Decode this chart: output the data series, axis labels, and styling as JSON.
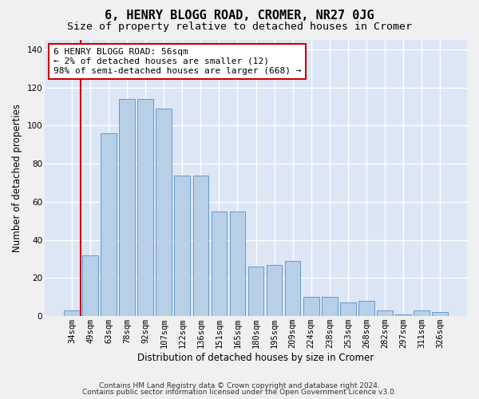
{
  "title": "6, HENRY BLOGG ROAD, CROMER, NR27 0JG",
  "subtitle": "Size of property relative to detached houses in Cromer",
  "xlabel": "Distribution of detached houses by size in Cromer",
  "ylabel": "Number of detached properties",
  "categories": [
    "34sqm",
    "49sqm",
    "63sqm",
    "78sqm",
    "92sqm",
    "107sqm",
    "122sqm",
    "136sqm",
    "151sqm",
    "165sqm",
    "180sqm",
    "195sqm",
    "209sqm",
    "224sqm",
    "238sqm",
    "253sqm",
    "268sqm",
    "282sqm",
    "297sqm",
    "311sqm",
    "326sqm"
  ],
  "values": [
    3,
    32,
    96,
    114,
    114,
    109,
    74,
    74,
    55,
    55,
    26,
    27,
    29,
    10,
    10,
    7,
    8,
    3,
    1,
    3,
    2
  ],
  "bar_color": "#b8cfe8",
  "bar_edge_color": "#6699cc",
  "vline_color": "#cc0000",
  "annotation_text": "6 HENRY BLOGG ROAD: 56sqm\n← 2% of detached houses are smaller (12)\n98% of semi-detached houses are larger (668) →",
  "annotation_box_color": "#ffffff",
  "annotation_box_edge": "#cc0000",
  "ylim": [
    0,
    145
  ],
  "yticks": [
    0,
    20,
    40,
    60,
    80,
    100,
    120,
    140
  ],
  "background_color": "#dce6f5",
  "grid_color": "#ffffff",
  "fig_background": "#f0f0f0",
  "footer_line1": "Contains HM Land Registry data © Crown copyright and database right 2024.",
  "footer_line2": "Contains public sector information licensed under the Open Government Licence v3.0.",
  "title_fontsize": 11,
  "subtitle_fontsize": 9.5,
  "axis_label_fontsize": 8.5,
  "tick_fontsize": 7.5,
  "annotation_fontsize": 8,
  "footer_fontsize": 6.5
}
